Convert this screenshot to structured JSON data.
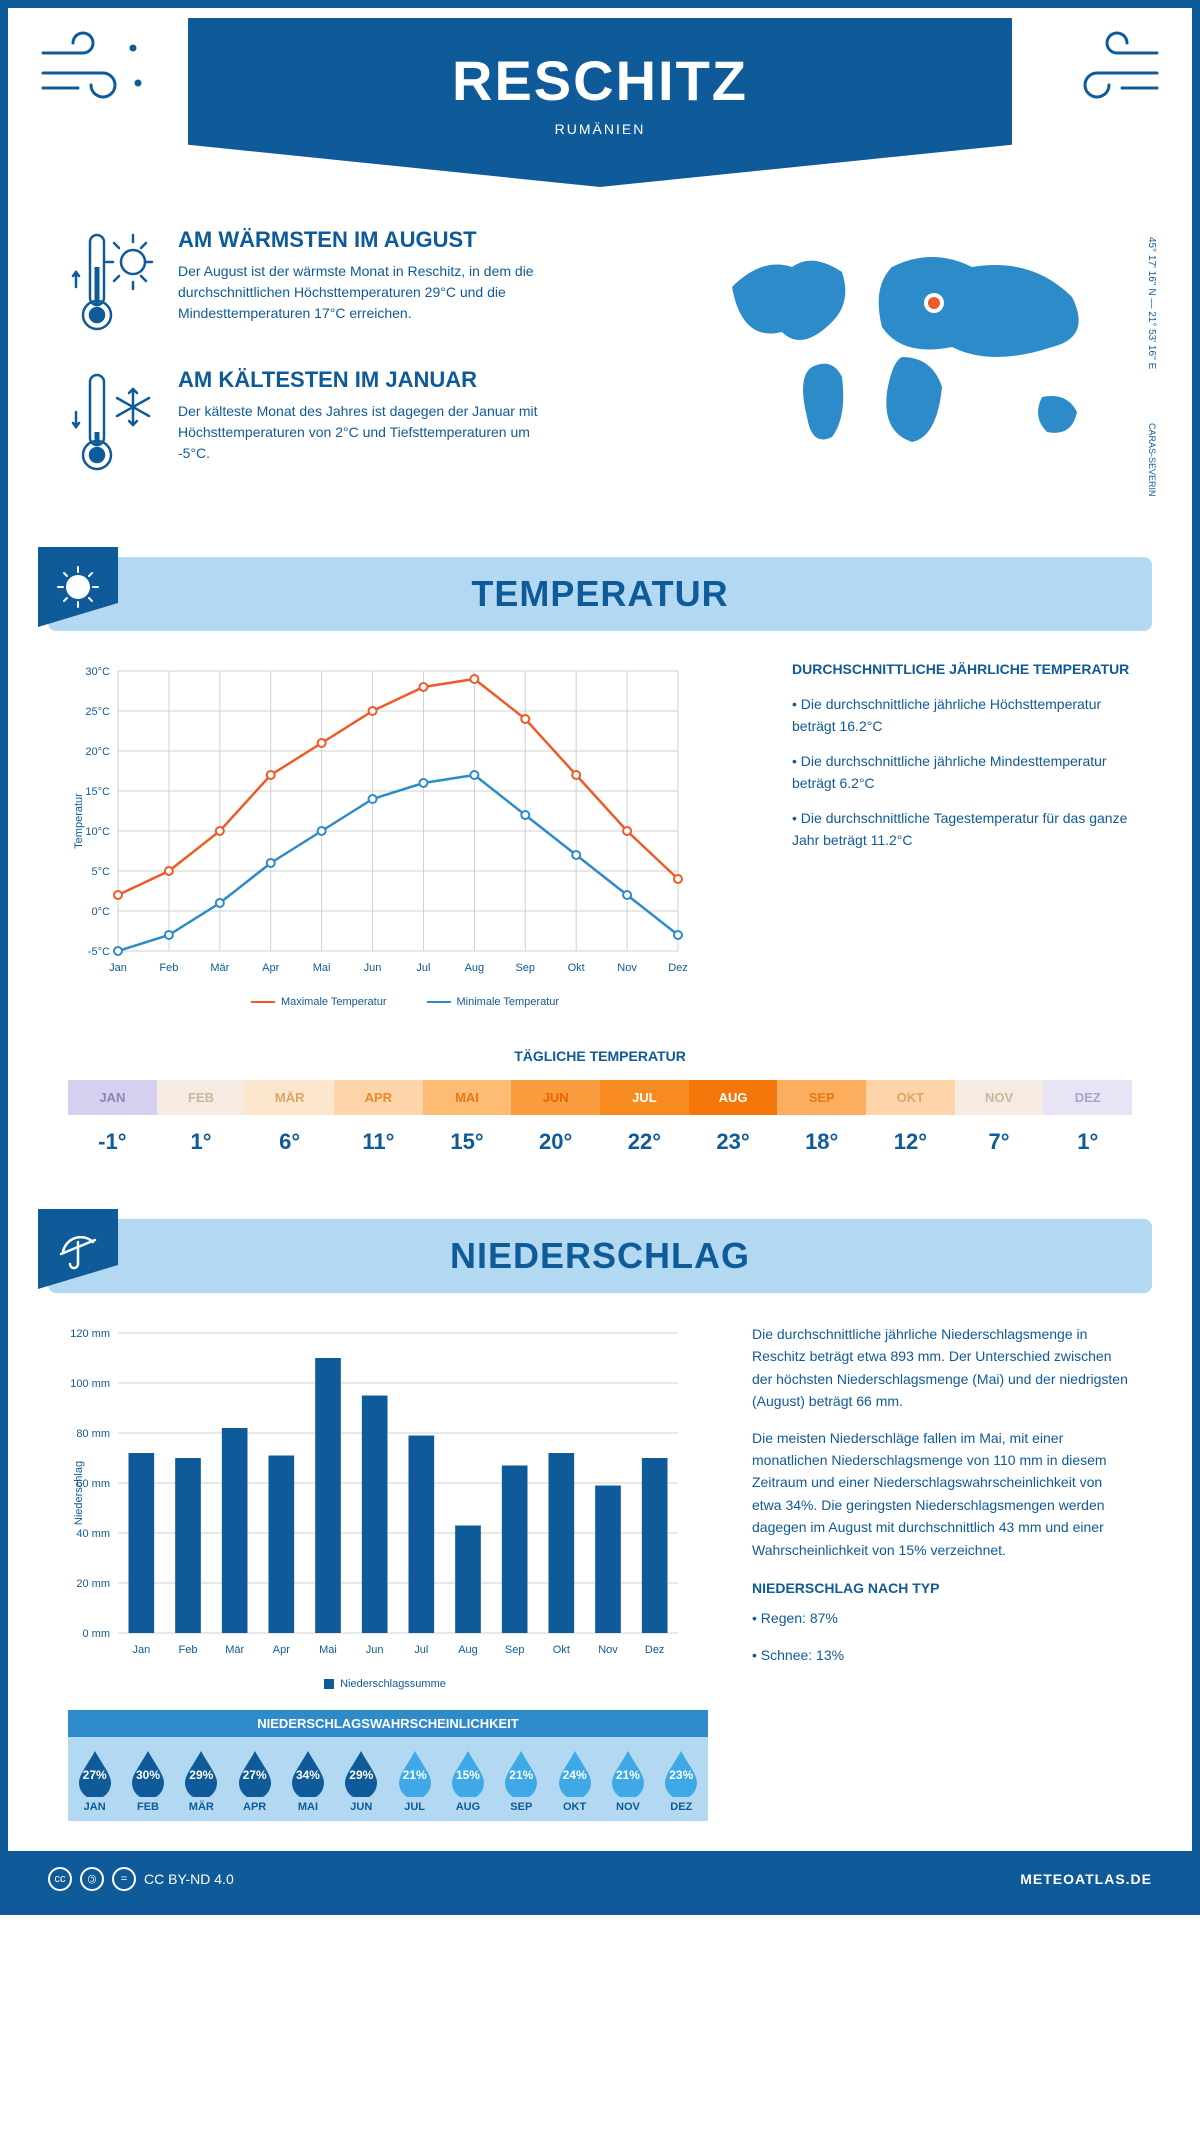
{
  "header": {
    "city": "RESCHITZ",
    "country": "RUMÄNIEN"
  },
  "coords": "45° 17' 16'' N — 21° 53' 16'' E",
  "region": "CARAS-SEVERIN",
  "warmest": {
    "title": "AM WÄRMSTEN IM AUGUST",
    "text": "Der August ist der wärmste Monat in Reschitz, in dem die durchschnittlichen Höchsttemperaturen 29°C und die Mindesttemperaturen 17°C erreichen."
  },
  "coldest": {
    "title": "AM KÄLTESTEN IM JANUAR",
    "text": "Der kälteste Monat des Jahres ist dagegen der Januar mit Höchsttemperaturen von 2°C und Tiefsttemperaturen um -5°C."
  },
  "temperature": {
    "heading": "TEMPERATUR",
    "subheading": "DURCHSCHNITTLICHE JÄHRLICHE TEMPERATUR",
    "bullet1": "• Die durchschnittliche jährliche Höchsttemperatur beträgt 16.2°C",
    "bullet2": "• Die durchschnittliche jährliche Mindesttemperatur beträgt 6.2°C",
    "bullet3": "• Die durchschnittliche Tagestemperatur für das ganze Jahr beträgt 11.2°C",
    "chart": {
      "type": "line",
      "months": [
        "Jan",
        "Feb",
        "Mär",
        "Apr",
        "Mai",
        "Jun",
        "Jul",
        "Aug",
        "Sep",
        "Okt",
        "Nov",
        "Dez"
      ],
      "max": [
        2,
        5,
        10,
        17,
        21,
        25,
        28,
        29,
        24,
        17,
        10,
        4
      ],
      "min": [
        -5,
        -3,
        1,
        6,
        10,
        14,
        16,
        17,
        12,
        7,
        2,
        -3
      ],
      "max_color": "#f05a28",
      "min_color": "#2d8bc9",
      "ylabel": "Temperatur",
      "ylim": [
        -5,
        30
      ],
      "ytick_step": 5,
      "grid_color": "#d0d0d0",
      "legend_max": "Maximale Temperatur",
      "legend_min": "Minimale Temperatur"
    },
    "daily_heading": "TÄGLICHE TEMPERATUR",
    "daily": {
      "months": [
        "JAN",
        "FEB",
        "MÄR",
        "APR",
        "MAI",
        "JUN",
        "JUL",
        "AUG",
        "SEP",
        "OKT",
        "NOV",
        "DEZ"
      ],
      "values": [
        "-1°",
        "1°",
        "6°",
        "11°",
        "15°",
        "20°",
        "22°",
        "23°",
        "18°",
        "12°",
        "7°",
        "1°"
      ],
      "colors": [
        "#d6d0f0",
        "#f5ebe0",
        "#fde6ce",
        "#fdd5a8",
        "#fdbb73",
        "#f99d3e",
        "#f78b1f",
        "#f5770b",
        "#fcae5e",
        "#fdd5a8",
        "#f5ebe0",
        "#e8e4f5"
      ],
      "text_colors": [
        "#8a86b5",
        "#c9b79c",
        "#d9a668",
        "#e88c2a",
        "#e87a12",
        "#e86500",
        "#ffffff",
        "#ffffff",
        "#e87a12",
        "#d9a668",
        "#c9b79c",
        "#a8a3cc"
      ]
    }
  },
  "precipitation": {
    "heading": "NIEDERSCHLAG",
    "chart": {
      "type": "bar",
      "months": [
        "Jan",
        "Feb",
        "Mär",
        "Apr",
        "Mai",
        "Jun",
        "Jul",
        "Aug",
        "Sep",
        "Okt",
        "Nov",
        "Dez"
      ],
      "values": [
        72,
        70,
        82,
        71,
        110,
        95,
        79,
        43,
        67,
        72,
        59,
        70
      ],
      "bar_color": "#0f5a99",
      "ylabel": "Niederschlag",
      "ylim": [
        0,
        120
      ],
      "ytick_step": 20,
      "grid_color": "#d0d0d0",
      "legend": "Niederschlagssumme"
    },
    "text1": "Die durchschnittliche jährliche Niederschlagsmenge in Reschitz beträgt etwa 893 mm. Der Unterschied zwischen der höchsten Niederschlagsmenge (Mai) und der niedrigsten (August) beträgt 66 mm.",
    "text2": "Die meisten Niederschläge fallen im Mai, mit einer monatlichen Niederschlagsmenge von 110 mm in diesem Zeitraum und einer Niederschlagswahrscheinlichkeit von etwa 34%. Die geringsten Niederschlagsmengen werden dagegen im August mit durchschnittlich 43 mm und einer Wahrscheinlichkeit von 15% verzeichnet.",
    "bytype_heading": "NIEDERSCHLAG NACH TYP",
    "bytype1": "• Regen: 87%",
    "bytype2": "• Schnee: 13%",
    "prob": {
      "heading": "NIEDERSCHLAGSWAHRSCHEINLICHKEIT",
      "months": [
        "JAN",
        "FEB",
        "MÄR",
        "APR",
        "MAI",
        "JUN",
        "JUL",
        "AUG",
        "SEP",
        "OKT",
        "NOV",
        "DEZ"
      ],
      "values": [
        "27%",
        "30%",
        "29%",
        "27%",
        "34%",
        "29%",
        "21%",
        "15%",
        "21%",
        "24%",
        "21%",
        "23%"
      ],
      "dark_count": 6,
      "dark_color": "#0f5a99",
      "light_color": "#3fa9e8"
    }
  },
  "footer": {
    "license": "CC BY-ND 4.0",
    "site": "METEOATLAS.DE"
  }
}
